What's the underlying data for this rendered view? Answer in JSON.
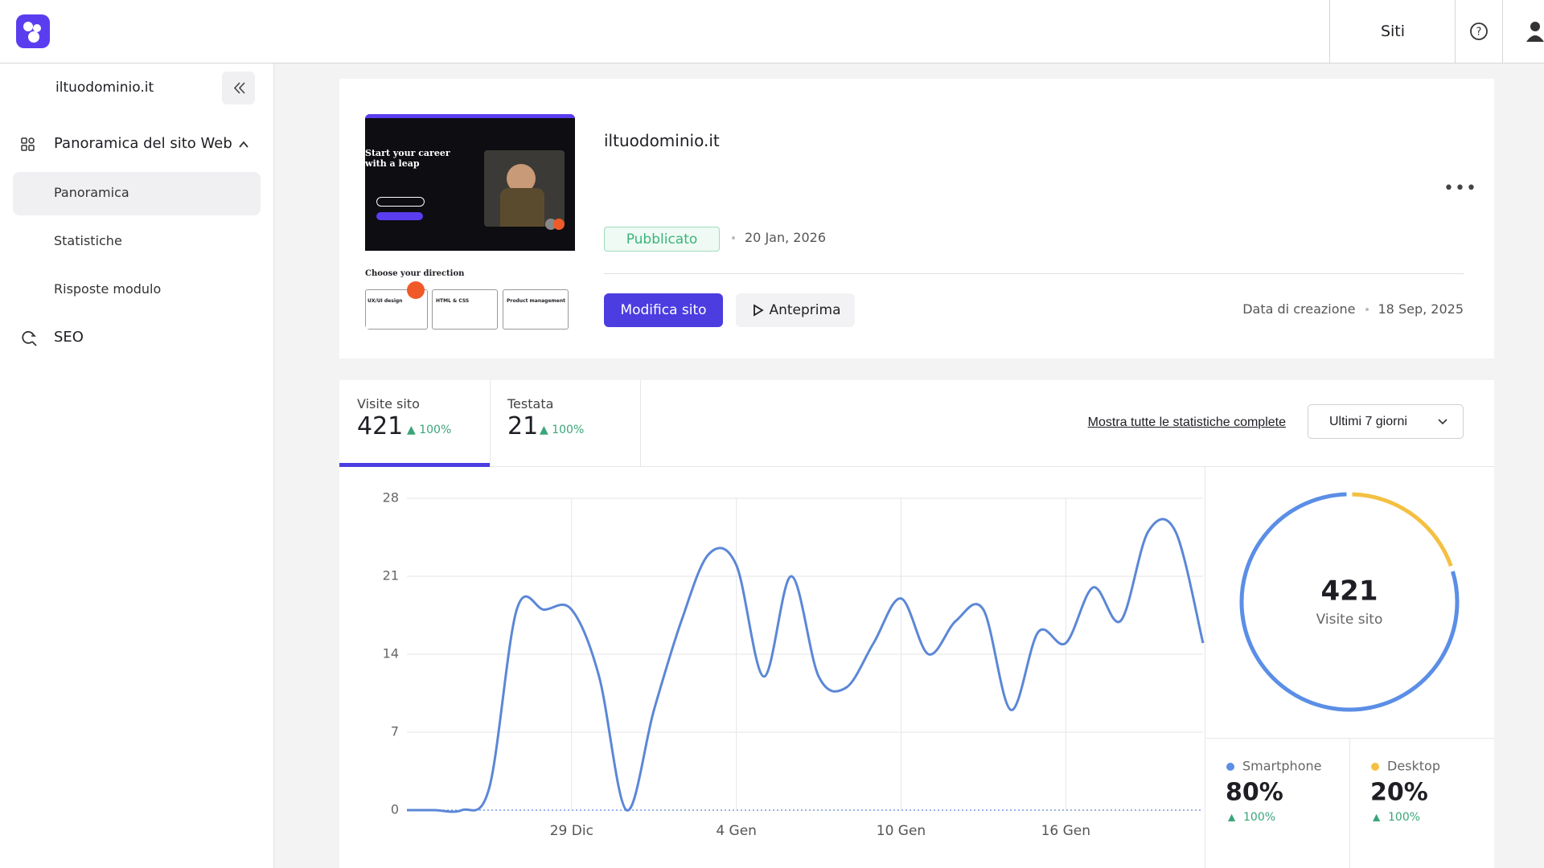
{
  "header": {
    "nav_sites": "Siti"
  },
  "sidebar": {
    "site_name": "iltuodominio.it",
    "section": "Panoramica del sito Web",
    "items": [
      "Panoramica",
      "Statistiche",
      "Risposte modulo"
    ],
    "seo": "SEO"
  },
  "site_card": {
    "thumbnail": {
      "headline": "Start your career with a leap",
      "section_title": "Choose your direction",
      "cards": [
        "UX/UI design",
        "HTML & CSS",
        "Product management"
      ]
    },
    "name": "iltuodominio.it",
    "status": "Pubblicato",
    "published_date": "20 Jan, 2026",
    "edit_button": "Modifica sito",
    "preview_button": "Anteprima",
    "created_label": "Data di creazione",
    "created_date": "18 Sep, 2025"
  },
  "stats": {
    "tabs": [
      {
        "label": "Visite sito",
        "value": 421,
        "change": "100%"
      },
      {
        "label": "Testata",
        "value": 21,
        "change": "100%"
      }
    ],
    "full_stats_link": "Mostra tutte le statistiche complete",
    "range": "Ultimi 7 giorni"
  },
  "chart_data": [
    {
      "type": "line",
      "categories": [
        null,
        null,
        null,
        null,
        null,
        null,
        "29 Dic",
        null,
        null,
        null,
        null,
        null,
        "4 Gen",
        null,
        null,
        null,
        null,
        null,
        "10 Gen",
        null,
        null,
        null,
        null,
        null,
        "16 Gen",
        null,
        null,
        null,
        null,
        null
      ],
      "series": [
        {
          "name": "Visite sito",
          "color": "#5b87d6",
          "values": [
            0,
            0,
            0,
            2,
            18,
            18,
            18,
            12,
            0,
            9,
            17,
            23,
            22,
            12,
            21,
            12,
            11,
            15,
            19,
            14,
            17,
            18,
            9,
            16,
            15,
            20,
            17,
            25,
            25,
            15
          ]
        }
      ],
      "ylim": [
        0,
        28
      ],
      "yticks": [
        0,
        7,
        14,
        21,
        28
      ],
      "grid": true
    },
    {
      "type": "donut",
      "categories": [
        "Smartphone",
        "Desktop"
      ],
      "values": [
        80,
        20
      ],
      "value_labels": [
        "80%",
        "20%"
      ],
      "colors": [
        "#5b8ee6",
        "#f4c042"
      ],
      "changes": [
        "100%",
        "100%"
      ],
      "center_value": 421,
      "center_label": "Visite sito"
    }
  ]
}
